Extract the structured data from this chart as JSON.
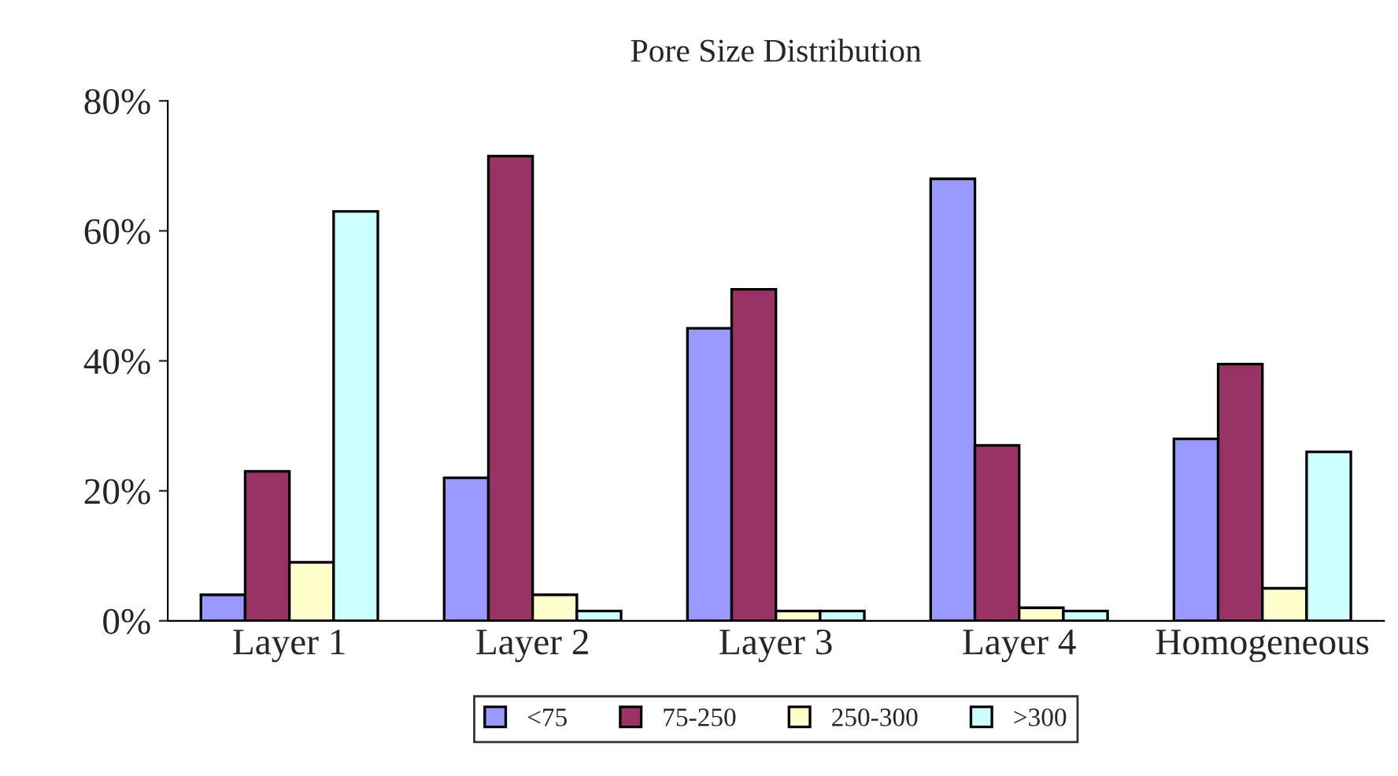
{
  "chart_data": {
    "type": "bar",
    "title": "Pore Size Distribution",
    "categories": [
      "Layer 1",
      "Layer 2",
      "Layer 3",
      "Layer 4",
      "Homogeneous"
    ],
    "series": [
      {
        "name": "<75",
        "color": "#9999ff",
        "values": [
          4,
          22,
          45,
          68,
          28
        ]
      },
      {
        "name": "75-250",
        "color": "#993366",
        "values": [
          23,
          71.5,
          51,
          27,
          39.5
        ]
      },
      {
        "name": "250-300",
        "color": "#ffffcc",
        "values": [
          9,
          4,
          1.5,
          2,
          5
        ]
      },
      {
        "name": ">300",
        "color": "#ccffff",
        "values": [
          63,
          1.5,
          1.5,
          1.5,
          26
        ]
      }
    ],
    "ylim": [
      0,
      80
    ],
    "yticks": [
      {
        "value": 0,
        "label": "0%"
      },
      {
        "value": 20,
        "label": "20%"
      },
      {
        "value": 40,
        "label": "40%"
      },
      {
        "value": 60,
        "label": "60%"
      },
      {
        "value": 80,
        "label": "80%"
      }
    ],
    "grid": false,
    "legend": "bottom"
  }
}
